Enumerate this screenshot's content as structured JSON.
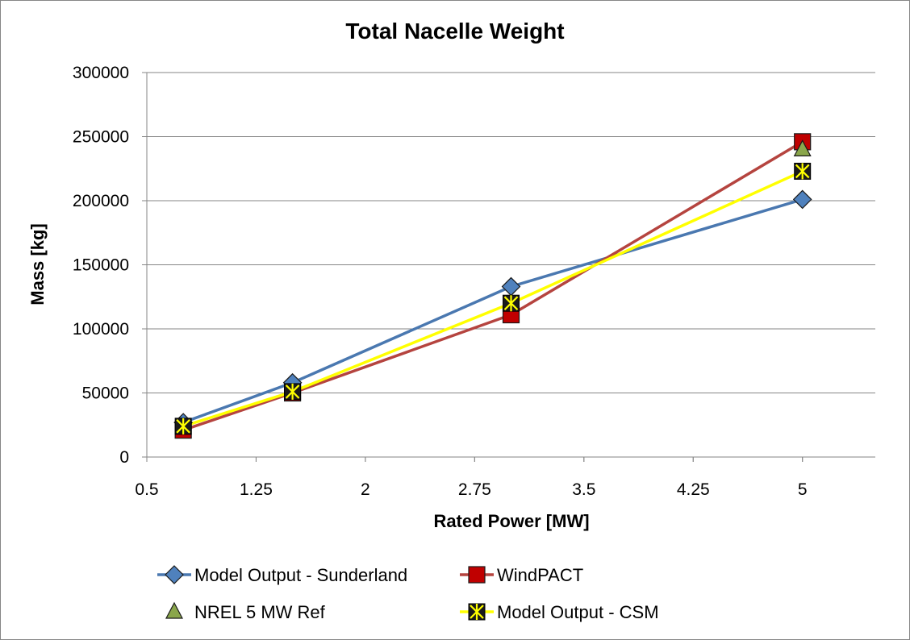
{
  "chart_data": {
    "type": "line",
    "title": "Total Nacelle Weight",
    "xlabel": "Rated Power [MW]",
    "ylabel": "Mass [kg]",
    "xlim": [
      0.5,
      5.5
    ],
    "ylim": [
      0,
      300000
    ],
    "x_ticks": [
      "0.5",
      "1.25",
      "2",
      "2.75",
      "3.5",
      "4.25",
      "5"
    ],
    "y_ticks": [
      "0",
      "50000",
      "100000",
      "150000",
      "200000",
      "250000",
      "300000"
    ],
    "grid": "horizontal",
    "legend_position": "bottom",
    "series": [
      {
        "name": "Model Output - Sunderland",
        "color": "#4a78b0",
        "marker": "diamond",
        "marker_color": "#4f81bd",
        "line": true,
        "x": [
          0.75,
          1.5,
          3.0,
          5.0
        ],
        "y": [
          27000,
          58000,
          133000,
          201000
        ]
      },
      {
        "name": "WindPACT",
        "color": "#b5443f",
        "marker": "square",
        "marker_color": "#c00000",
        "line": true,
        "x": [
          0.75,
          1.5,
          3.0,
          5.0
        ],
        "y": [
          21000,
          50000,
          111000,
          246000
        ]
      },
      {
        "name": "NREL 5 MW Ref",
        "color": "#9bbb59",
        "marker": "triangle",
        "marker_color": "#8aa64b",
        "line": false,
        "x": [
          5.0
        ],
        "y": [
          240000
        ]
      },
      {
        "name": "Model Output - CSM",
        "color": "#ffff00",
        "marker": "x-square",
        "marker_color": "#000000",
        "line": true,
        "x": [
          0.75,
          1.5,
          3.0,
          5.0
        ],
        "y": [
          24000,
          51000,
          120000,
          223000
        ]
      }
    ]
  }
}
